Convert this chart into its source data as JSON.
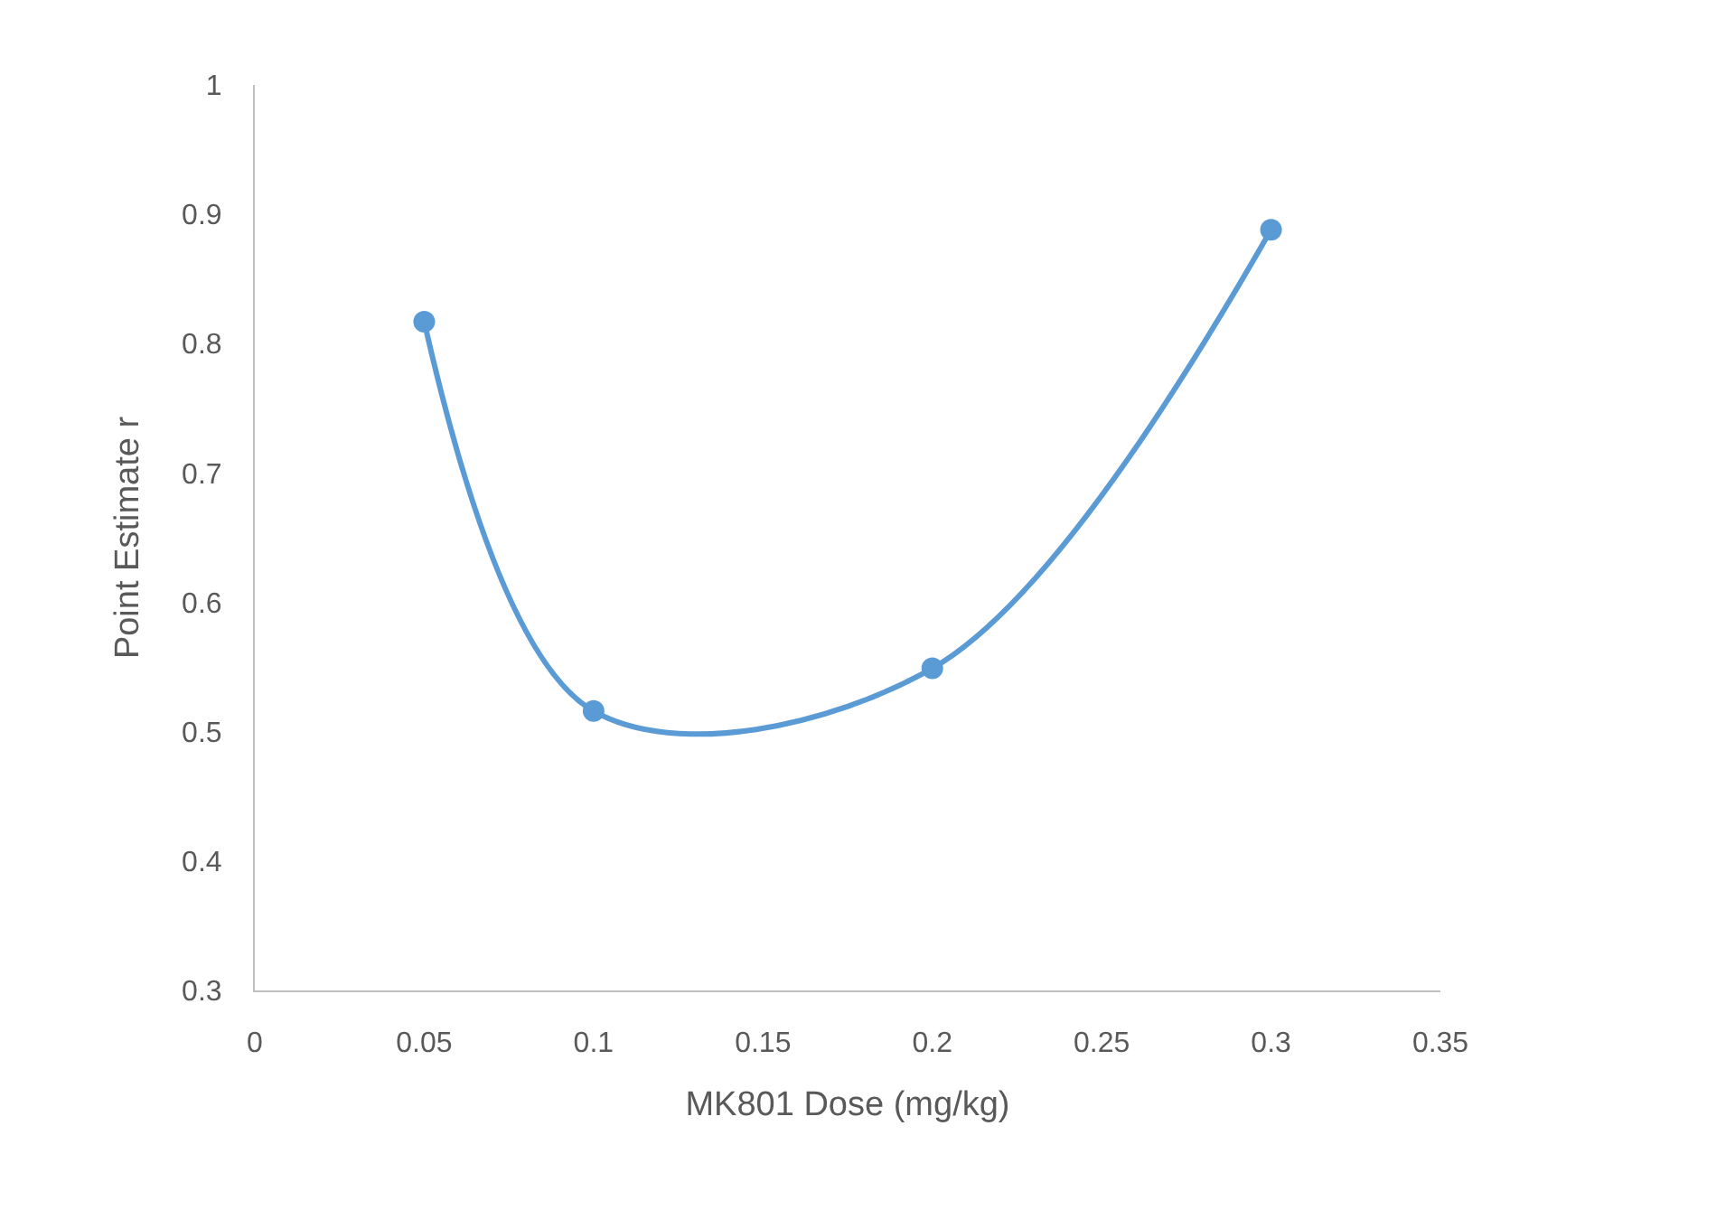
{
  "chart_data": {
    "type": "line",
    "xlabel": "MK801 Dose (mg/kg)",
    "ylabel": "Point Estimate r",
    "x": [
      0.05,
      0.1,
      0.2,
      0.3
    ],
    "series": [
      {
        "color": "#5b9bd5",
        "values": [
          0.817,
          0.516,
          0.549,
          0.888
        ]
      }
    ],
    "xlim": [
      0,
      0.35
    ],
    "xticks": [
      0,
      0.05,
      0.1,
      0.15,
      0.2,
      0.25,
      0.3,
      0.35
    ],
    "ylim": [
      0.3,
      1
    ],
    "yticks": [
      0.3,
      0.4,
      0.5,
      0.6,
      0.7,
      0.8,
      0.9,
      1
    ],
    "grid": false,
    "marker": "circle",
    "line_style": "solid"
  }
}
